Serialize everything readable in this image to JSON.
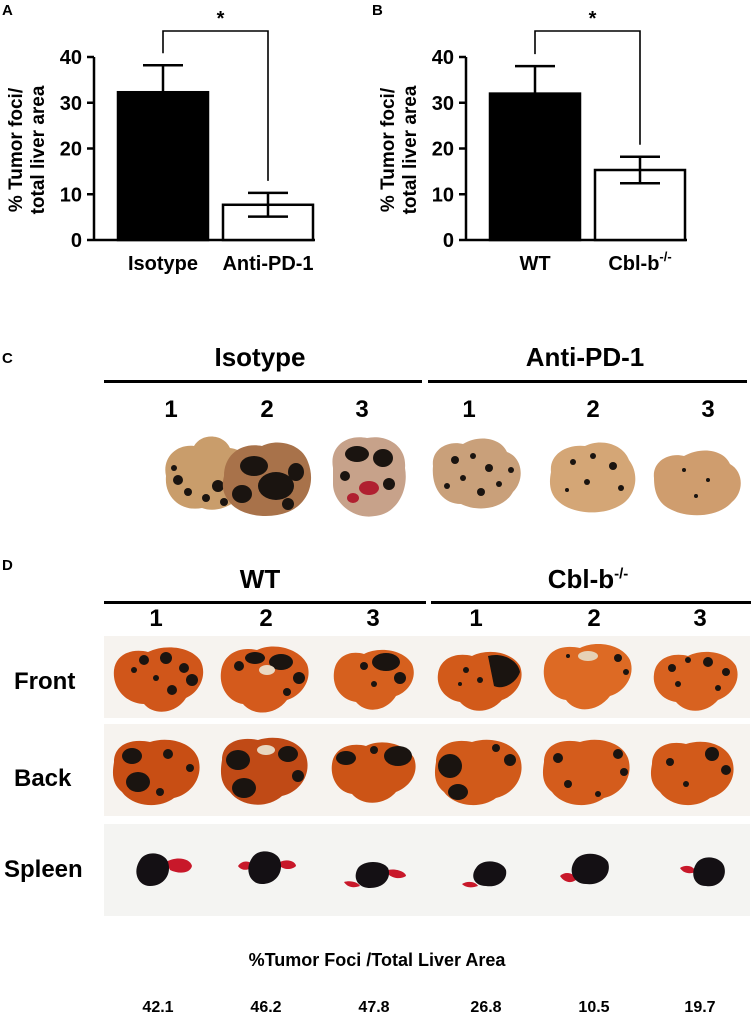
{
  "panels": {
    "a": "A",
    "b": "B",
    "c": "C",
    "d": "D"
  },
  "chart_data": [
    {
      "type": "bar",
      "categories": [
        "Isotype",
        "Anti-PD-1"
      ],
      "values": [
        32.3,
        7.7
      ],
      "errors": [
        5.9,
        2.6
      ],
      "bar_colors": [
        "#000000",
        "#ffffff"
      ],
      "ylabel": "% Tumor foci/\ntotal liver area",
      "ylim": [
        0,
        40
      ],
      "yticks": [
        "0",
        "10",
        "20",
        "30",
        "40"
      ],
      "significance": "*"
    },
    {
      "type": "bar",
      "categories": [
        "WT",
        "Cbl-b"
      ],
      "category_superscripts": [
        "",
        "-/-"
      ],
      "values": [
        32.0,
        15.3
      ],
      "errors": [
        6.0,
        2.9
      ],
      "bar_colors": [
        "#000000",
        "#ffffff"
      ],
      "ylabel": "% Tumor foci/\ntotal liver area",
      "ylim": [
        0,
        40
      ],
      "yticks": [
        "0",
        "10",
        "20",
        "30",
        "40"
      ],
      "significance": "*"
    }
  ],
  "panel_c": {
    "groups": [
      {
        "title": "Isotype",
        "numbers": [
          "1",
          "2",
          "3"
        ]
      },
      {
        "title": "Anti-PD-1",
        "numbers": [
          "1",
          "2",
          "3"
        ]
      }
    ]
  },
  "panel_d": {
    "groups": [
      {
        "title": "WT",
        "numbers": [
          "1",
          "2",
          "3"
        ]
      },
      {
        "title": "Cbl-b",
        "title_sup": "-/-",
        "numbers": [
          "1",
          "2",
          "3"
        ]
      }
    ],
    "rows": [
      "Front",
      "Back",
      "Spleen"
    ],
    "footer_title": "%Tumor Foci /Total Liver Area",
    "footer_values": [
      "42.1",
      "46.2",
      "47.8",
      "26.8",
      "10.5",
      "19.7"
    ]
  },
  "colors": {
    "liver_c": "#c79a6a",
    "liver_d": "#d35a1a",
    "tumor": "#1a1410",
    "spleen_red": "#c8182a"
  }
}
